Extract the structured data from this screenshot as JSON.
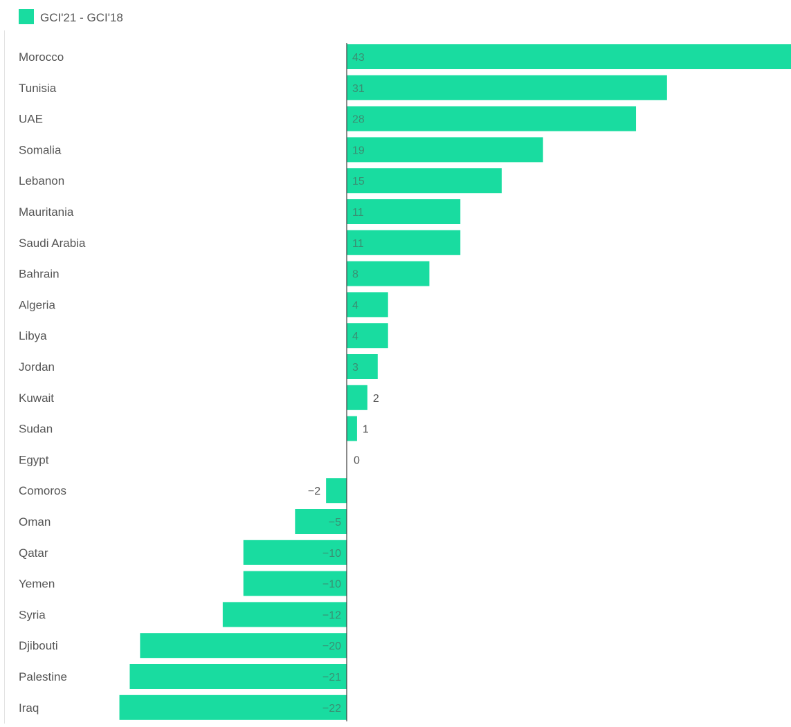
{
  "colors": {
    "bar": "#19dca0",
    "label": "#555555",
    "value_inside": "#3a8f73",
    "value_outside": "#555555",
    "axis": "#3c3c3c"
  },
  "chart_data": {
    "type": "bar",
    "orientation": "horizontal",
    "legend_position": "top-left",
    "grid": false,
    "xlim": [
      -22,
      43
    ],
    "series": [
      {
        "name": "GCI'21 - GCI'18",
        "values": [
          43,
          31,
          28,
          19,
          15,
          11,
          11,
          8,
          4,
          4,
          3,
          2,
          1,
          0,
          -2,
          -5,
          -10,
          -10,
          -12,
          -20,
          -21,
          -22
        ]
      }
    ],
    "categories": [
      "Morocco",
      "Tunisia",
      "UAE",
      "Somalia",
      "Lebanon",
      "Mauritania",
      "Saudi Arabia",
      "Bahrain",
      "Algeria",
      "Libya",
      "Jordan",
      "Kuwait",
      "Sudan",
      "Egypt",
      "Comoros",
      "Oman",
      "Qatar",
      "Yemen",
      "Syria",
      "Djibouti",
      "Palestine",
      "Iraq"
    ],
    "data_labels": [
      "43",
      "31",
      "28",
      "19",
      "15",
      "11",
      "11",
      "8",
      "4",
      "4",
      "3",
      "2",
      "1",
      "0",
      "-2",
      "-5",
      "-10",
      "-10",
      "-12",
      "-20",
      "-21",
      "-22"
    ]
  }
}
